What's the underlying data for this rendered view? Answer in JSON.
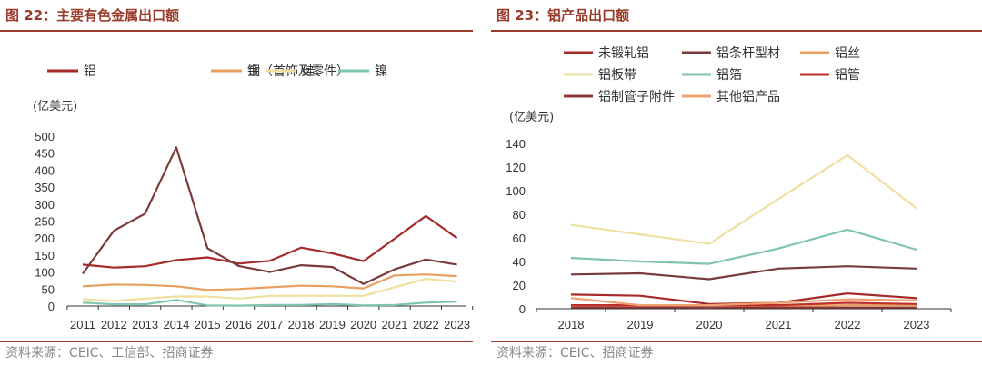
{
  "left": {
    "title": "图 22：主要有色金属出口额",
    "source": "资料来源：CEIC、工信部、招商证券",
    "chart_data": {
      "type": "line",
      "ylabel": "(亿美元)",
      "ylim": [
        0,
        500
      ],
      "yticks": [
        0,
        50,
        100,
        150,
        200,
        250,
        300,
        350,
        400,
        450,
        500
      ],
      "categories": [
        "2011",
        "2012",
        "2013",
        "2014",
        "2015",
        "2016",
        "2017",
        "2018",
        "2019",
        "2020",
        "2021",
        "2022",
        "2023"
      ],
      "legend_position": "top",
      "series": [
        {
          "name": "铝",
          "color": "#a52a2a",
          "values": [
            122,
            113,
            117,
            135,
            143,
            125,
            133,
            172,
            155,
            132,
            198,
            265,
            200
          ]
        },
        {
          "name": "金（首饰及零件）",
          "color": "#7a3b3b",
          "values": [
            95,
            222,
            272,
            467,
            170,
            118,
            100,
            120,
            115,
            65,
            108,
            137,
            122
          ]
        },
        {
          "name": "铜",
          "color": "#e8a060",
          "values": [
            58,
            63,
            62,
            58,
            47,
            50,
            55,
            60,
            58,
            52,
            90,
            93,
            88
          ]
        },
        {
          "name": "硅",
          "color": "#efe0a0",
          "values": [
            20,
            15,
            22,
            28,
            28,
            22,
            30,
            30,
            30,
            30,
            55,
            80,
            72
          ]
        },
        {
          "name": "镍",
          "color": "#7fc4b0",
          "values": [
            10,
            5,
            5,
            18,
            2,
            1,
            3,
            3,
            6,
            2,
            3,
            10,
            13
          ]
        }
      ]
    }
  },
  "right": {
    "title": "图 23：铝产品出口额",
    "source": "资料来源：CEIC、招商证券",
    "chart_data": {
      "type": "line",
      "ylabel": "(亿美元)",
      "ylim": [
        0,
        140
      ],
      "yticks": [
        0,
        20,
        40,
        60,
        80,
        100,
        120,
        140
      ],
      "categories": [
        "2018",
        "2019",
        "2020",
        "2021",
        "2022",
        "2023"
      ],
      "legend_position": "top",
      "series": [
        {
          "name": "未锻轧铝",
          "color": "#a52a2a",
          "values": [
            12,
            11,
            4,
            5,
            13,
            9
          ]
        },
        {
          "name": "铝条杆型材",
          "color": "#7a3b3b",
          "values": [
            29,
            30,
            25,
            34,
            36,
            34
          ]
        },
        {
          "name": "铝丝",
          "color": "#e8a060",
          "values": [
            2,
            2,
            1,
            2,
            3,
            3
          ]
        },
        {
          "name": "铝板带",
          "color": "#efe0a0",
          "values": [
            71,
            63,
            55,
            93,
            130,
            85
          ]
        },
        {
          "name": "铝箔",
          "color": "#7fc4b0",
          "values": [
            43,
            40,
            38,
            51,
            67,
            50
          ]
        },
        {
          "name": "铝管",
          "color": "#c0302a",
          "values": [
            3,
            3,
            3,
            3,
            5,
            4
          ]
        },
        {
          "name": "铝制管子附件",
          "color": "#8a3535",
          "values": [
            1,
            1,
            1,
            1,
            1,
            1
          ]
        },
        {
          "name": "其他铝产品",
          "color": "#f0a070",
          "values": [
            9,
            3,
            3,
            5,
            8,
            7
          ]
        }
      ]
    }
  }
}
